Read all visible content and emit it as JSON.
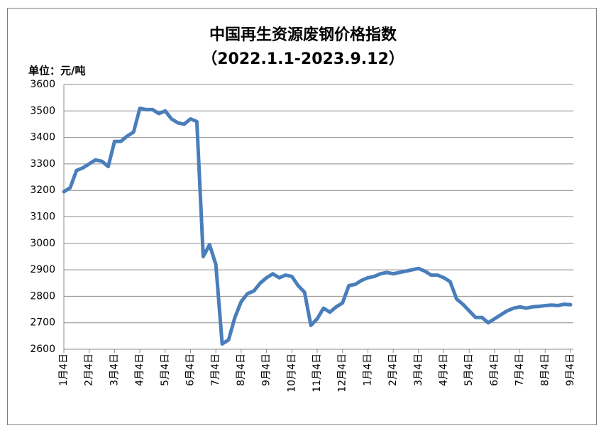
{
  "chart_data": {
    "type": "line",
    "title": "中国再生资源废钢价格指数",
    "subtitle": "（2022.1.1-2023.9.12）",
    "y_label": "单位：元/吨",
    "categories": [
      "1月4日",
      null,
      null,
      null,
      "2月4日",
      null,
      null,
      null,
      "3月4日",
      null,
      null,
      null,
      "4月4日",
      null,
      null,
      null,
      "5月4日",
      null,
      null,
      null,
      "6月4日",
      null,
      null,
      null,
      "7月4日",
      null,
      null,
      null,
      "8月4日",
      null,
      null,
      null,
      "9月4日",
      null,
      null,
      null,
      "10月4日",
      null,
      null,
      null,
      "11月4日",
      null,
      null,
      null,
      "12月4日",
      null,
      null,
      null,
      "1月4日",
      null,
      null,
      null,
      "2月4日",
      null,
      null,
      null,
      "3月4日",
      null,
      null,
      null,
      "4月4日",
      null,
      null,
      null,
      "5月4日",
      null,
      null,
      null,
      "6月4日",
      null,
      null,
      null,
      "7月4日",
      null,
      null,
      null,
      "8月4日",
      null,
      null,
      null,
      "9月4日"
    ],
    "series": [
      {
        "name": "中国再生资源废钢价格指数",
        "color": "#4a7ebb",
        "values": [
          3195,
          3210,
          3275,
          3285,
          3300,
          3315,
          3310,
          3290,
          3385,
          3385,
          3405,
          3420,
          3510,
          3505,
          3505,
          3490,
          3500,
          3470,
          3455,
          3450,
          3470,
          3460,
          2950,
          2995,
          2920,
          2620,
          2635,
          2720,
          2780,
          2810,
          2820,
          2850,
          2870,
          2885,
          2870,
          2880,
          2875,
          2840,
          2815,
          2690,
          2715,
          2755,
          2740,
          2760,
          2775,
          2840,
          2845,
          2860,
          2870,
          2875,
          2885,
          2890,
          2885,
          2890,
          2895,
          2900,
          2905,
          2895,
          2880,
          2880,
          2870,
          2855,
          2790,
          2770,
          2745,
          2720,
          2720,
          2700,
          2715,
          2730,
          2745,
          2755,
          2760,
          2755,
          2760,
          2762,
          2765,
          2767,
          2765,
          2770,
          2768
        ]
      }
    ],
    "ylim": [
      2600,
      3600
    ],
    "yticks": [
      2600,
      2700,
      2800,
      2900,
      3000,
      3100,
      3200,
      3300,
      3400,
      3500,
      3600
    ],
    "grid": true
  }
}
